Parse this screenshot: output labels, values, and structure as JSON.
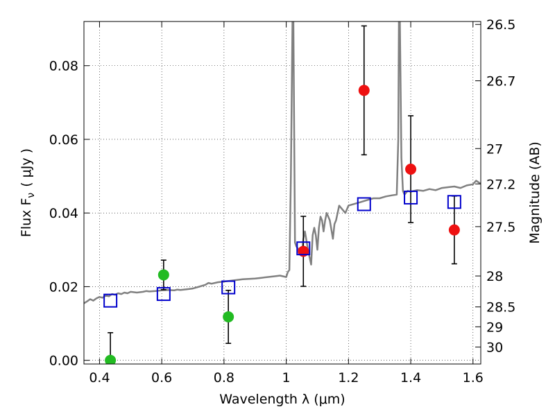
{
  "chart_data": {
    "type": "scatter",
    "xlabel": "Wavelength  λ (μm)",
    "ylabel": "Flux  F",
    "ylabel_sub": "ν",
    "ylabel_unit": "( μJy )",
    "ylabel_right": "Magnitude (AB)",
    "xlim": [
      0.35,
      1.625
    ],
    "ylim": [
      -0.001,
      0.092
    ],
    "grid": true,
    "x_ticks": [
      0.4,
      0.6,
      0.8,
      1.0,
      1.2,
      1.4,
      1.6
    ],
    "x_tick_labels": [
      "0.4",
      "0.6",
      "0.8",
      "1",
      "1.2",
      "1.4",
      "1.6"
    ],
    "y_ticks": [
      0.0,
      0.02,
      0.04,
      0.06,
      0.08
    ],
    "y_tick_labels": [
      "0.00",
      "0.02",
      "0.04",
      "0.06",
      "0.08"
    ],
    "right_ticks": [
      {
        "flux": 0.0912,
        "label": "26.5"
      },
      {
        "flux": 0.0759,
        "label": "26.7"
      },
      {
        "flux": 0.0575,
        "label": "27"
      },
      {
        "flux": 0.0479,
        "label": "27.2"
      },
      {
        "flux": 0.0363,
        "label": "27.5"
      },
      {
        "flux": 0.0229,
        "label": "28"
      },
      {
        "flux": 0.0145,
        "label": "28.5"
      },
      {
        "flux": 0.0091,
        "label": "29"
      },
      {
        "flux": 0.0036,
        "label": "30"
      }
    ],
    "colors": {
      "model": "#808080",
      "optical": "#22bb22",
      "nir": "#ee1111",
      "model_phot": "#0000cc",
      "errorbar": "#000000"
    },
    "series": [
      {
        "kind": "model_spectrum",
        "x": [
          0.35,
          0.36,
          0.37,
          0.38,
          0.39,
          0.4,
          0.41,
          0.42,
          0.43,
          0.44,
          0.45,
          0.46,
          0.47,
          0.48,
          0.49,
          0.5,
          0.52,
          0.54,
          0.55,
          0.56,
          0.58,
          0.6,
          0.62,
          0.64,
          0.65,
          0.66,
          0.68,
          0.7,
          0.72,
          0.74,
          0.75,
          0.76,
          0.78,
          0.8,
          0.82,
          0.84,
          0.86,
          0.88,
          0.9,
          0.92,
          0.94,
          0.96,
          0.98,
          1.0,
          1.005,
          1.01,
          1.015,
          1.02,
          1.023,
          1.028,
          1.032,
          1.04,
          1.05,
          1.055,
          1.06,
          1.07,
          1.08,
          1.085,
          1.09,
          1.095,
          1.1,
          1.105,
          1.11,
          1.115,
          1.12,
          1.125,
          1.13,
          1.14,
          1.15,
          1.155,
          1.16,
          1.17,
          1.18,
          1.19,
          1.2,
          1.22,
          1.24,
          1.26,
          1.28,
          1.3,
          1.32,
          1.34,
          1.355,
          1.36,
          1.362,
          1.365,
          1.37,
          1.375,
          1.38,
          1.385,
          1.39,
          1.4,
          1.42,
          1.44,
          1.46,
          1.48,
          1.5,
          1.52,
          1.54,
          1.56,
          1.58,
          1.6,
          1.61,
          1.62,
          1.625
        ],
        "y": [
          0.0155,
          0.016,
          0.0166,
          0.0162,
          0.0168,
          0.0172,
          0.017,
          0.0176,
          0.0174,
          0.018,
          0.0178,
          0.0182,
          0.018,
          0.0184,
          0.0182,
          0.0186,
          0.0184,
          0.0186,
          0.0188,
          0.0187,
          0.0188,
          0.019,
          0.0191,
          0.019,
          0.0192,
          0.0191,
          0.0193,
          0.0195,
          0.02,
          0.0205,
          0.021,
          0.0208,
          0.0212,
          0.0214,
          0.0216,
          0.0218,
          0.022,
          0.0221,
          0.0222,
          0.0224,
          0.0226,
          0.0228,
          0.023,
          0.0226,
          0.024,
          0.0245,
          0.05,
          0.092,
          0.092,
          0.032,
          0.031,
          0.03,
          0.029,
          0.033,
          0.035,
          0.03,
          0.026,
          0.034,
          0.036,
          0.034,
          0.03,
          0.036,
          0.039,
          0.038,
          0.035,
          0.038,
          0.04,
          0.038,
          0.033,
          0.037,
          0.038,
          0.042,
          0.041,
          0.04,
          0.042,
          0.0425,
          0.043,
          0.0435,
          0.044,
          0.044,
          0.0445,
          0.0448,
          0.045,
          0.06,
          0.092,
          0.092,
          0.055,
          0.046,
          0.045,
          0.0455,
          0.046,
          0.0458,
          0.0462,
          0.046,
          0.0465,
          0.0462,
          0.0468,
          0.047,
          0.0472,
          0.0468,
          0.0475,
          0.0478,
          0.0488,
          0.0482,
          0.048
        ]
      },
      {
        "kind": "photometry",
        "color_key": "optical",
        "points": [
          {
            "x": 0.435,
            "y": 0.0,
            "yerr": 0.0075
          },
          {
            "x": 0.606,
            "y": 0.0232,
            "yerr": 0.004
          },
          {
            "x": 0.814,
            "y": 0.0118,
            "yerr": 0.0072
          }
        ]
      },
      {
        "kind": "photometry",
        "color_key": "nir",
        "points": [
          {
            "x": 1.055,
            "y": 0.0296,
            "yerr": 0.0095
          },
          {
            "x": 1.25,
            "y": 0.0733,
            "yerr": 0.0175
          },
          {
            "x": 1.4,
            "y": 0.0519,
            "yerr": 0.0145
          },
          {
            "x": 1.54,
            "y": 0.0354,
            "yerr": 0.0092
          }
        ]
      },
      {
        "kind": "model_photometry",
        "color_key": "model_phot",
        "points": [
          {
            "x": 0.435,
            "y": 0.0162
          },
          {
            "x": 0.606,
            "y": 0.018
          },
          {
            "x": 0.814,
            "y": 0.0198
          },
          {
            "x": 1.055,
            "y": 0.0304
          },
          {
            "x": 1.25,
            "y": 0.0424
          },
          {
            "x": 1.4,
            "y": 0.0442
          },
          {
            "x": 1.54,
            "y": 0.043
          }
        ]
      }
    ]
  }
}
